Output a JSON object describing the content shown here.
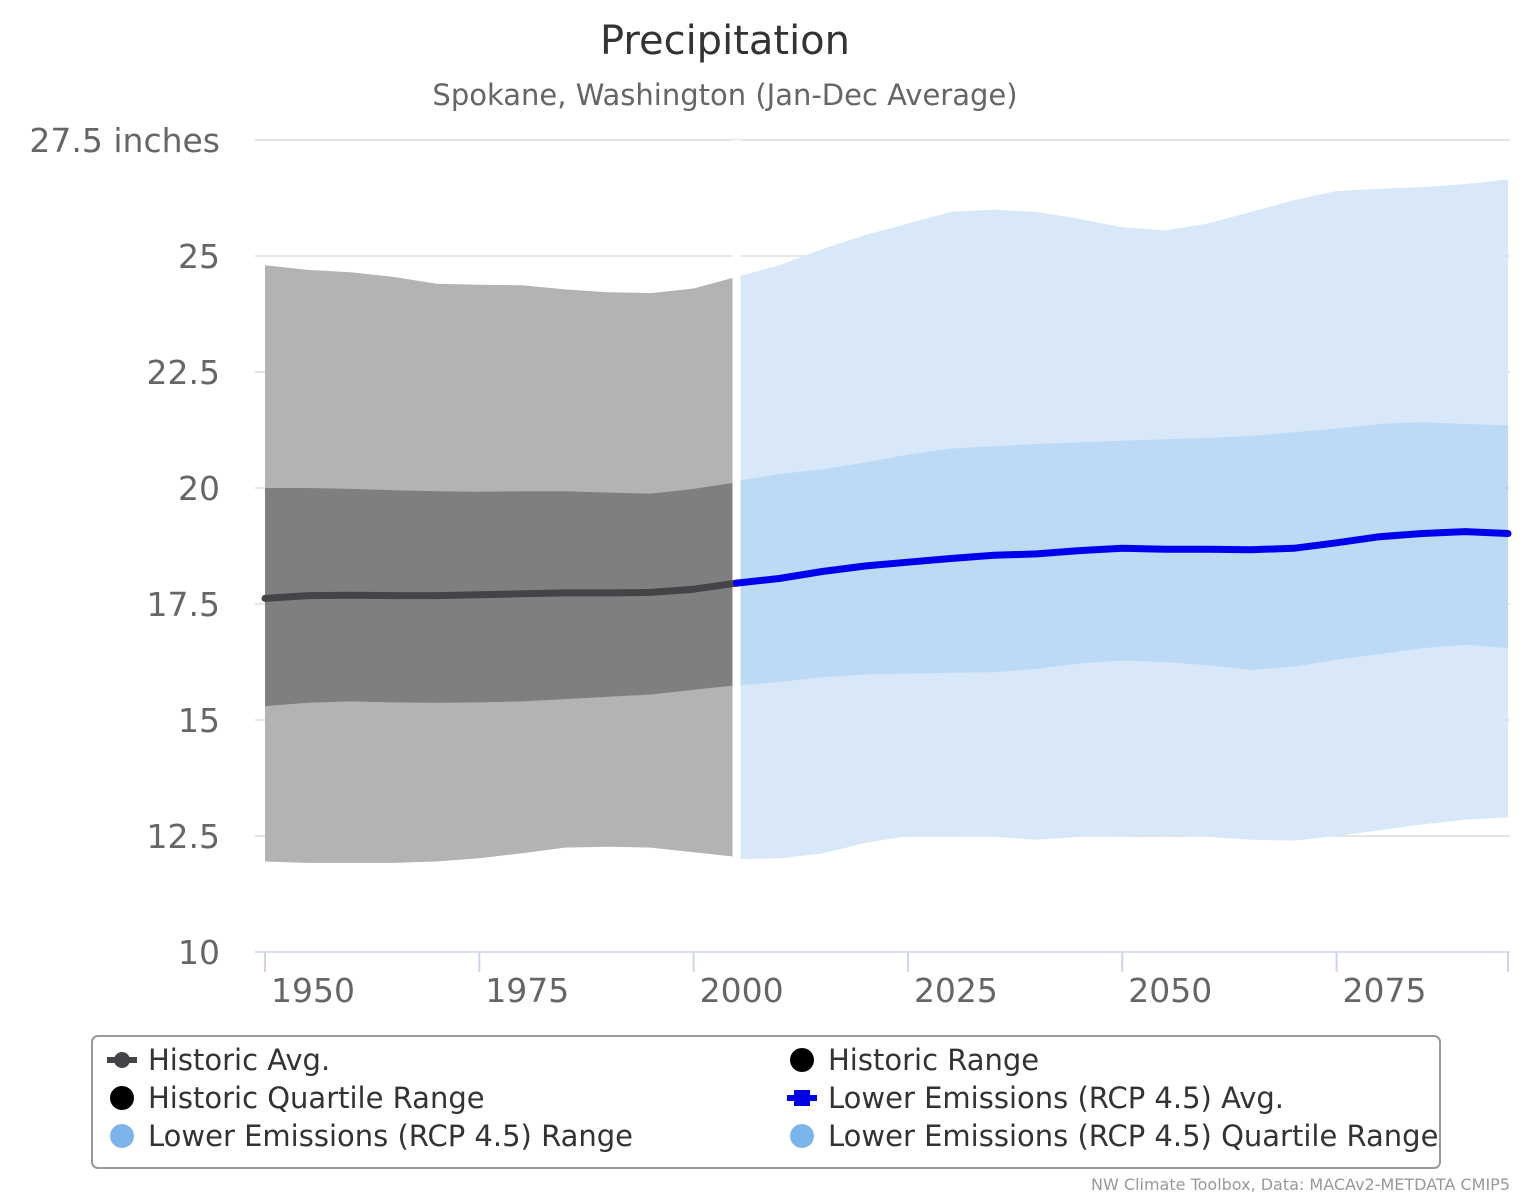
{
  "chart_data": {
    "type": "area",
    "title": "Precipitation",
    "subtitle": "Spokane, Washington (Jan-Dec Average)",
    "yaxis": {
      "min": 10,
      "max": 27.5,
      "ticks": [
        10,
        12.5,
        15,
        17.5,
        20,
        22.5,
        25,
        27.5
      ],
      "tick_labels": [
        "10",
        "12.5",
        "15",
        "17.5",
        "20",
        "22.5",
        "25",
        "27.5 inches"
      ],
      "grid": true
    },
    "xaxis": {
      "min": 1950,
      "max": 2095,
      "ticks": [
        1950,
        1975,
        2000,
        2025,
        2050,
        2075
      ],
      "tick_labels": [
        "1950",
        "1975",
        "2000",
        "2025",
        "2050",
        "2075"
      ]
    },
    "colors": {
      "historic_avg": "#444448",
      "historic_range": "#b3b3b3",
      "historic_quartile": "#7f7f7f",
      "rcp45_avg": "#0000ee",
      "rcp45_range": "#d8e8f8",
      "rcp45_quartile": "#bcd9f5",
      "legend_marker_black": "#000000",
      "legend_marker_blue": "#7cb5ec"
    },
    "series": [
      {
        "name": "Historic Avg.",
        "x": [
          1950,
          1955,
          1960,
          1965,
          1970,
          1975,
          1980,
          1985,
          1990,
          1995,
          2000,
          2005
        ],
        "y": [
          17.62,
          17.68,
          17.69,
          17.68,
          17.68,
          17.7,
          17.72,
          17.74,
          17.74,
          17.75,
          17.82,
          17.95
        ]
      },
      {
        "name": "Historic Range",
        "x": [
          1950,
          1955,
          1960,
          1965,
          1970,
          1975,
          1980,
          1985,
          1990,
          1995,
          2000,
          2005
        ],
        "low": [
          11.95,
          11.92,
          11.92,
          11.92,
          11.95,
          12.02,
          12.13,
          12.25,
          12.27,
          12.25,
          12.15,
          12.05
        ],
        "high": [
          24.8,
          24.7,
          24.65,
          24.55,
          24.4,
          24.38,
          24.37,
          24.28,
          24.22,
          24.2,
          24.3,
          24.55
        ]
      },
      {
        "name": "Historic Quartile Range",
        "x": [
          1950,
          1955,
          1960,
          1965,
          1970,
          1975,
          1980,
          1985,
          1990,
          1995,
          2000,
          2005
        ],
        "low": [
          15.3,
          15.37,
          15.4,
          15.38,
          15.37,
          15.38,
          15.4,
          15.45,
          15.5,
          15.55,
          15.65,
          15.75
        ],
        "high": [
          20.0,
          20.0,
          19.98,
          19.95,
          19.93,
          19.92,
          19.93,
          19.93,
          19.9,
          19.88,
          19.98,
          20.12
        ]
      },
      {
        "name": "Lower Emissions (RCP 4.5) Avg.",
        "x": [
          2005,
          2010,
          2015,
          2020,
          2025,
          2030,
          2035,
          2040,
          2045,
          2050,
          2055,
          2060,
          2065,
          2070,
          2075,
          2080,
          2085,
          2090,
          2095
        ],
        "y": [
          17.95,
          18.05,
          18.2,
          18.32,
          18.4,
          18.48,
          18.55,
          18.58,
          18.65,
          18.7,
          18.68,
          18.68,
          18.67,
          18.7,
          18.82,
          18.95,
          19.02,
          19.06,
          19.02
        ]
      },
      {
        "name": "Lower Emissions (RCP 4.5) Range",
        "x": [
          2005,
          2010,
          2015,
          2020,
          2025,
          2030,
          2035,
          2040,
          2045,
          2050,
          2055,
          2060,
          2065,
          2070,
          2075,
          2080,
          2085,
          2090,
          2095
        ],
        "low": [
          12.0,
          12.02,
          12.12,
          12.35,
          12.5,
          12.5,
          12.48,
          12.42,
          12.48,
          12.5,
          12.52,
          12.48,
          12.42,
          12.4,
          12.5,
          12.62,
          12.75,
          12.85,
          12.9
        ],
        "high": [
          24.55,
          24.8,
          25.15,
          25.45,
          25.7,
          25.95,
          26.0,
          25.95,
          25.8,
          25.62,
          25.55,
          25.7,
          25.95,
          26.2,
          26.4,
          26.45,
          26.48,
          26.55,
          26.65
        ]
      },
      {
        "name": "Lower Emissions (RCP 4.5) Quartile Range",
        "x": [
          2005,
          2010,
          2015,
          2020,
          2025,
          2030,
          2035,
          2040,
          2045,
          2050,
          2055,
          2060,
          2065,
          2070,
          2075,
          2080,
          2085,
          2090,
          2095
        ],
        "low": [
          15.75,
          15.82,
          15.92,
          15.98,
          16.0,
          16.02,
          16.03,
          16.1,
          16.22,
          16.28,
          16.25,
          16.18,
          16.08,
          16.15,
          16.3,
          16.42,
          16.55,
          16.62,
          16.55
        ],
        "high": [
          20.15,
          20.3,
          20.4,
          20.55,
          20.72,
          20.85,
          20.9,
          20.95,
          20.98,
          21.02,
          21.05,
          21.08,
          21.12,
          21.2,
          21.28,
          21.38,
          21.42,
          21.38,
          21.35
        ]
      }
    ],
    "legend": {
      "placement": "bottom",
      "items": [
        {
          "label": "Historic Avg.",
          "marker": "line-circle",
          "color": "#444448"
        },
        {
          "label": "Historic Range",
          "marker": "circle",
          "color": "#000000"
        },
        {
          "label": "Historic Quartile Range",
          "marker": "circle",
          "color": "#000000"
        },
        {
          "label": "Lower Emissions (RCP 4.5) Avg.",
          "marker": "line-square",
          "color": "#0000ee"
        },
        {
          "label": "Lower Emissions (RCP 4.5) Range",
          "marker": "circle",
          "color": "#7cb5ec"
        },
        {
          "label": "Lower Emissions (RCP 4.5) Quartile Range",
          "marker": "circle",
          "color": "#7cb5ec"
        }
      ]
    },
    "credit": "NW Climate Toolbox, Data: MACAv2-METDATA CMIP5"
  }
}
